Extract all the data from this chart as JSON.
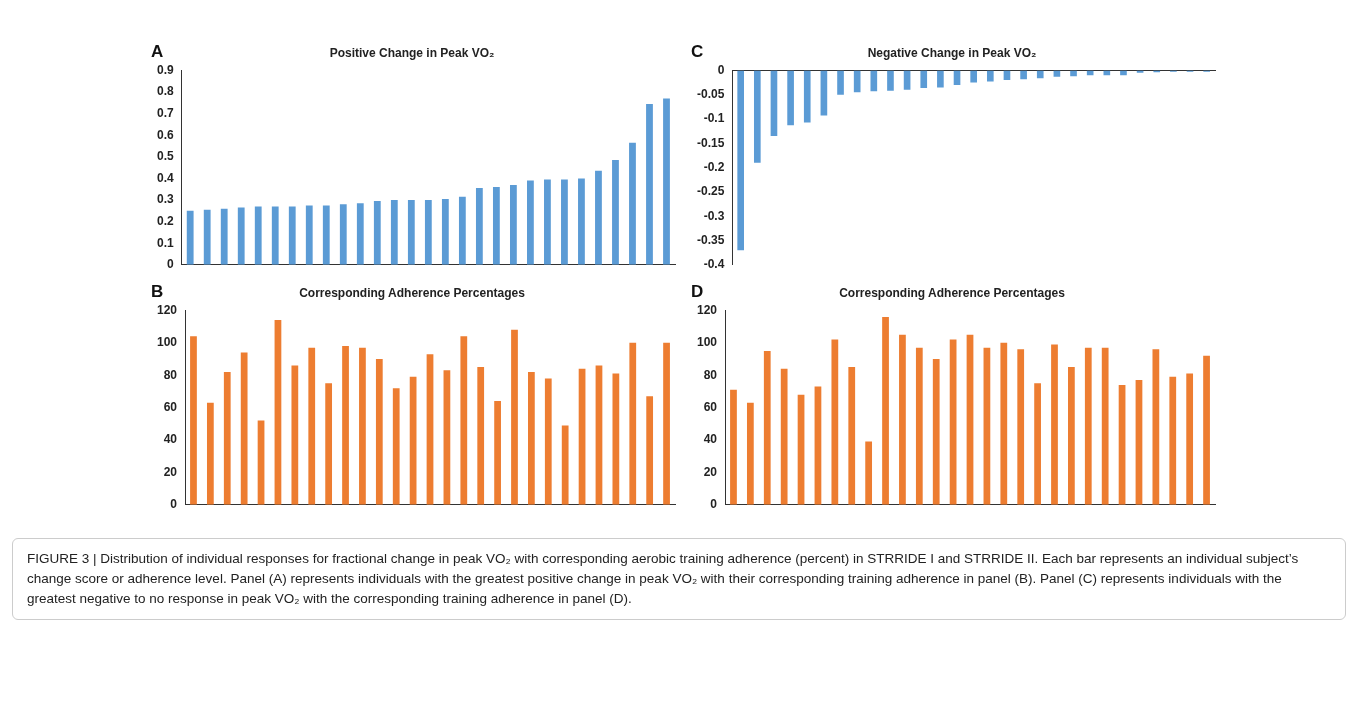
{
  "chart_data": [
    {
      "type": "bar",
      "title": "Positive Change in Peak VO₂",
      "annotations": [
        "A"
      ],
      "categories": [
        null,
        null,
        null,
        null,
        null,
        null,
        null,
        null,
        null,
        null,
        null,
        null,
        null,
        null,
        null,
        null,
        null,
        null,
        null,
        null,
        null,
        null,
        null,
        null,
        null,
        null,
        null,
        null,
        null
      ],
      "color": "#5b9bd5",
      "values": [
        0.25,
        0.255,
        0.26,
        0.265,
        0.27,
        0.27,
        0.27,
        0.275,
        0.275,
        0.28,
        0.285,
        0.295,
        0.3,
        0.3,
        0.3,
        0.305,
        0.315,
        0.355,
        0.36,
        0.37,
        0.39,
        0.395,
        0.395,
        0.4,
        0.435,
        0.485,
        0.565,
        0.745,
        0.77
      ],
      "ylim": [
        0,
        0.9
      ],
      "yticks": [
        0,
        0.1,
        0.2,
        0.3,
        0.4,
        0.5,
        0.6,
        0.7,
        0.8,
        0.9
      ],
      "tick_labels": "y"
    },
    {
      "type": "bar",
      "title": "Negative Change in Peak VO₂",
      "annotations": [
        "C"
      ],
      "categories": [
        null,
        null,
        null,
        null,
        null,
        null,
        null,
        null,
        null,
        null,
        null,
        null,
        null,
        null,
        null,
        null,
        null,
        null,
        null,
        null,
        null,
        null,
        null,
        null,
        null,
        null,
        null,
        null,
        null
      ],
      "color": "#5b9bd5",
      "values": [
        -0.37,
        -0.19,
        -0.135,
        -0.113,
        -0.107,
        -0.093,
        -0.05,
        -0.045,
        -0.043,
        -0.042,
        -0.04,
        -0.036,
        -0.035,
        -0.03,
        -0.025,
        -0.023,
        -0.02,
        -0.018,
        -0.016,
        -0.013,
        -0.012,
        -0.01,
        -0.01,
        -0.01,
        -0.005,
        -0.004,
        -0.003,
        -0.003,
        -0.003
      ],
      "ylim": [
        -0.4,
        0
      ],
      "yticks": [
        0,
        -0.05,
        -0.1,
        -0.15,
        -0.2,
        -0.25,
        -0.3,
        -0.35,
        -0.4
      ],
      "tick_labels": "y"
    },
    {
      "type": "bar",
      "title": "Corresponding Adherence Percentages",
      "annotations": [
        "B"
      ],
      "categories": [
        null,
        null,
        null,
        null,
        null,
        null,
        null,
        null,
        null,
        null,
        null,
        null,
        null,
        null,
        null,
        null,
        null,
        null,
        null,
        null,
        null,
        null,
        null,
        null,
        null,
        null,
        null,
        null,
        null
      ],
      "color": "#ed7d31",
      "values": [
        104,
        63,
        82,
        94,
        52,
        114,
        86,
        97,
        75,
        98,
        97,
        90,
        72,
        79,
        93,
        83,
        104,
        85,
        64,
        108,
        82,
        78,
        49,
        84,
        86,
        81,
        100,
        67,
        100
      ],
      "ylim": [
        0,
        120
      ],
      "yticks": [
        0,
        20,
        40,
        60,
        80,
        100,
        120
      ],
      "tick_labels": "y"
    },
    {
      "type": "bar",
      "title": "Corresponding Adherence Percentages",
      "annotations": [
        "D",
        "FIGURE 3 | Distribution of individual responses for fractional change in peak VO₂ with corresponding aerobic training adherence (percent) in STRRIDE I and STRRIDE II. Each bar represents an individual subject’s change score or adherence level. Panel (A) represents individuals with the greatest positive change in peak VO₂ with their corresponding training adherence in panel (B). Panel (C) represents individuals with the greatest negative to no response in peak VO₂ with the corresponding training adherence in panel (D)."
      ],
      "categories": [
        null,
        null,
        null,
        null,
        null,
        null,
        null,
        null,
        null,
        null,
        null,
        null,
        null,
        null,
        null,
        null,
        null,
        null,
        null,
        null,
        null,
        null,
        null,
        null,
        null,
        null,
        null,
        null,
        null
      ],
      "color": "#ed7d31",
      "values": [
        71,
        63,
        95,
        84,
        68,
        73,
        102,
        85,
        39,
        116,
        105,
        97,
        90,
        102,
        105,
        97,
        100,
        96,
        75,
        99,
        85,
        97,
        97,
        74,
        77,
        96,
        79,
        81,
        92
      ],
      "ylim": [
        0,
        120
      ],
      "yticks": [
        0,
        20,
        40,
        60,
        80,
        100,
        120
      ],
      "tick_labels": "y"
    }
  ]
}
